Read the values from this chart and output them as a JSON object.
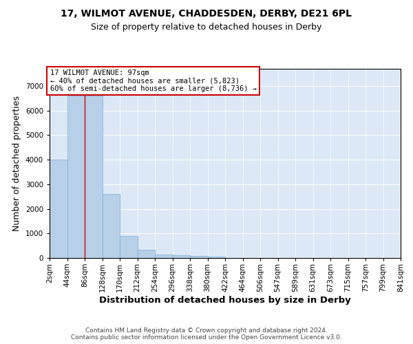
{
  "title_line1": "17, WILMOT AVENUE, CHADDESDEN, DERBY, DE21 6PL",
  "title_line2": "Size of property relative to detached houses in Derby",
  "xlabel": "Distribution of detached houses by size in Derby",
  "ylabel": "Number of detached properties",
  "footer": "Contains HM Land Registry data © Crown copyright and database right 2024.\nContains public sector information licensed under the Open Government Licence v3.0.",
  "bin_labels": [
    "2sqm",
    "44sqm",
    "86sqm",
    "128sqm",
    "170sqm",
    "212sqm",
    "254sqm",
    "296sqm",
    "338sqm",
    "380sqm",
    "422sqm",
    "464sqm",
    "506sqm",
    "547sqm",
    "589sqm",
    "631sqm",
    "673sqm",
    "715sqm",
    "757sqm",
    "799sqm",
    "841sqm"
  ],
  "bar_heights": [
    4000,
    6600,
    6600,
    2600,
    900,
    350,
    150,
    100,
    80,
    60,
    0,
    0,
    0,
    0,
    0,
    0,
    0,
    0,
    0,
    0
  ],
  "bar_color": "#b8cfe8",
  "bar_edge_color": "#7aafd4",
  "background_color": "#dce8f5",
  "grid_color": "#ffffff",
  "property_line_x": 86,
  "annotation_text": "17 WILMOT AVENUE: 97sqm\n← 40% of detached houses are smaller (5,823)\n60% of semi-detached houses are larger (8,736) →",
  "annotation_box_color": "#cc0000",
  "ylim": [
    0,
    7700
  ],
  "yticks": [
    0,
    1000,
    2000,
    3000,
    4000,
    5000,
    6000,
    7000
  ],
  "title_fontsize": 10,
  "subtitle_fontsize": 9,
  "axis_label_fontsize": 9,
  "tick_fontsize": 7.5,
  "annotation_fontsize": 7.5,
  "footer_fontsize": 6.5
}
